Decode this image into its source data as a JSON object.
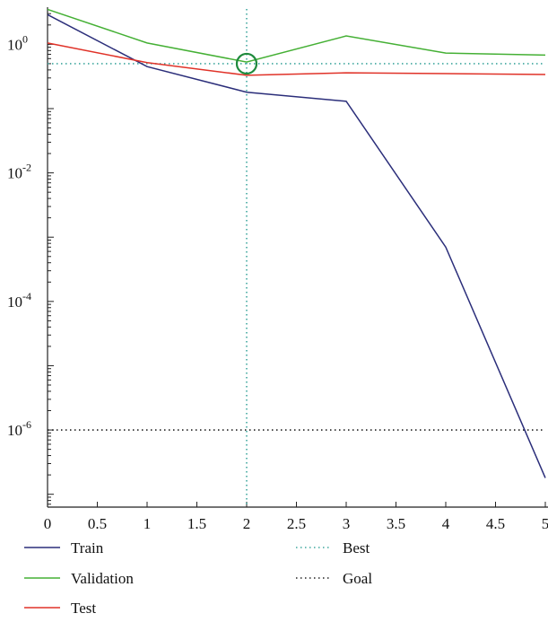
{
  "chart_data": {
    "type": "line",
    "title": "",
    "xlabel": "",
    "ylabel": "",
    "x": [
      0,
      1,
      2,
      3,
      4,
      5
    ],
    "xlim": [
      0,
      5
    ],
    "ylim": [
      1e-07,
      10
    ],
    "yscale": "log",
    "x_ticks": [
      {
        "value": 0,
        "label": "0"
      },
      {
        "value": 0.5,
        "label": "0.5"
      },
      {
        "value": 1,
        "label": "1"
      },
      {
        "value": 1.5,
        "label": "1.5"
      },
      {
        "value": 2,
        "label": "2"
      },
      {
        "value": 2.5,
        "label": "2.5"
      },
      {
        "value": 3,
        "label": "3"
      },
      {
        "value": 3.5,
        "label": "3.5"
      },
      {
        "value": 4,
        "label": "4"
      },
      {
        "value": 4.5,
        "label": "4.5"
      },
      {
        "value": 5,
        "label": "5"
      }
    ],
    "y_ticks": [
      {
        "value": 1,
        "base": "10",
        "exp": "0"
      },
      {
        "value": 0.01,
        "base": "10",
        "exp": "-2"
      },
      {
        "value": 0.0001,
        "base": "10",
        "exp": "-4"
      },
      {
        "value": 1e-06,
        "base": "10",
        "exp": "-6"
      }
    ],
    "series": [
      {
        "name": "Train",
        "color": "#2b2e7a",
        "dash": "solid",
        "values": [
          2.9,
          0.45,
          0.18,
          0.13,
          0.0007,
          1.8e-07
        ]
      },
      {
        "name": "Validation",
        "color": "#45b035",
        "dash": "solid",
        "values": [
          3.5,
          1.05,
          0.53,
          1.35,
          0.73,
          0.68
        ]
      },
      {
        "name": "Test",
        "color": "#e03228",
        "dash": "solid",
        "values": [
          1.05,
          0.52,
          0.33,
          0.36,
          0.35,
          0.34
        ]
      }
    ],
    "reference_lines": {
      "best": {
        "name": "Best",
        "color": "#3fa79f",
        "x": 2,
        "y": 0.5
      },
      "goal": {
        "name": "Goal",
        "color": "#222222",
        "y": 1e-06
      }
    },
    "best_marker": {
      "x": 2,
      "y": 0.5,
      "color": "#1e8a3c"
    },
    "grid": false,
    "legend_position": "bottom"
  }
}
